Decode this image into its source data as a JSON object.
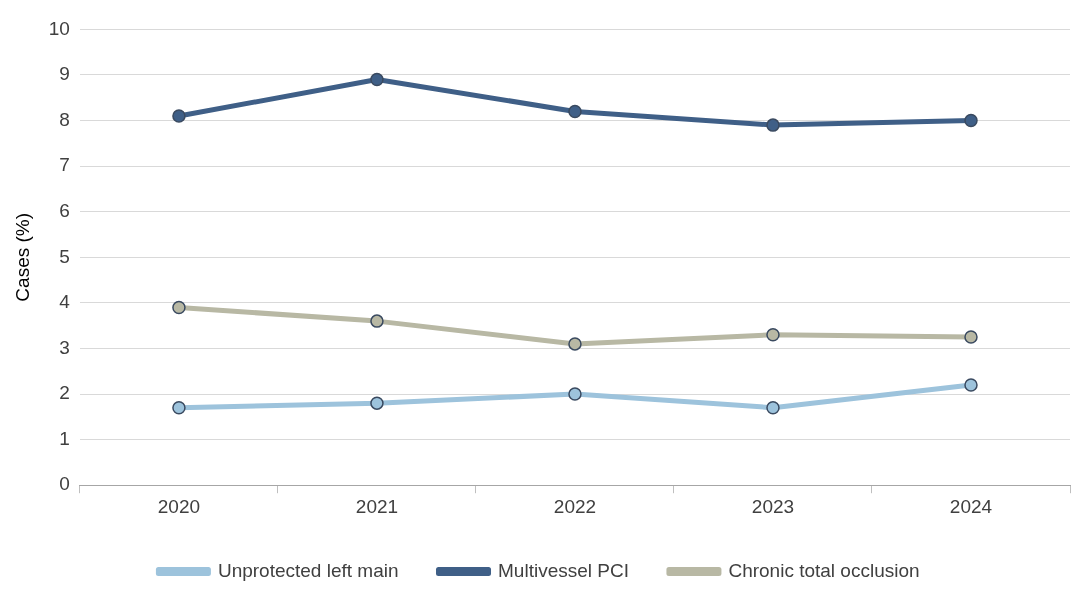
{
  "chart_data": {
    "type": "line",
    "ylabel": "Cases (%)",
    "categories": [
      "2020",
      "2021",
      "2022",
      "2023",
      "2024"
    ],
    "series": [
      {
        "name": "Unprotected left main",
        "color": "#9dc3dc",
        "values": [
          1.7,
          1.8,
          2.0,
          1.7,
          2.2
        ]
      },
      {
        "name": "Multivessel PCI",
        "color": "#3f5f87",
        "values": [
          8.1,
          8.9,
          8.2,
          7.9,
          8.0
        ]
      },
      {
        "name": "Chronic total occlusion",
        "color": "#b8b8a4",
        "values": [
          3.9,
          3.6,
          3.1,
          3.3,
          3.25
        ]
      }
    ],
    "ylim": [
      0,
      10
    ],
    "yticks": [
      0,
      1,
      2,
      3,
      4,
      5,
      6,
      7,
      8,
      9,
      10
    ],
    "grid": "y",
    "legend": "bottom",
    "marker": "circle",
    "line_style": "solid"
  }
}
